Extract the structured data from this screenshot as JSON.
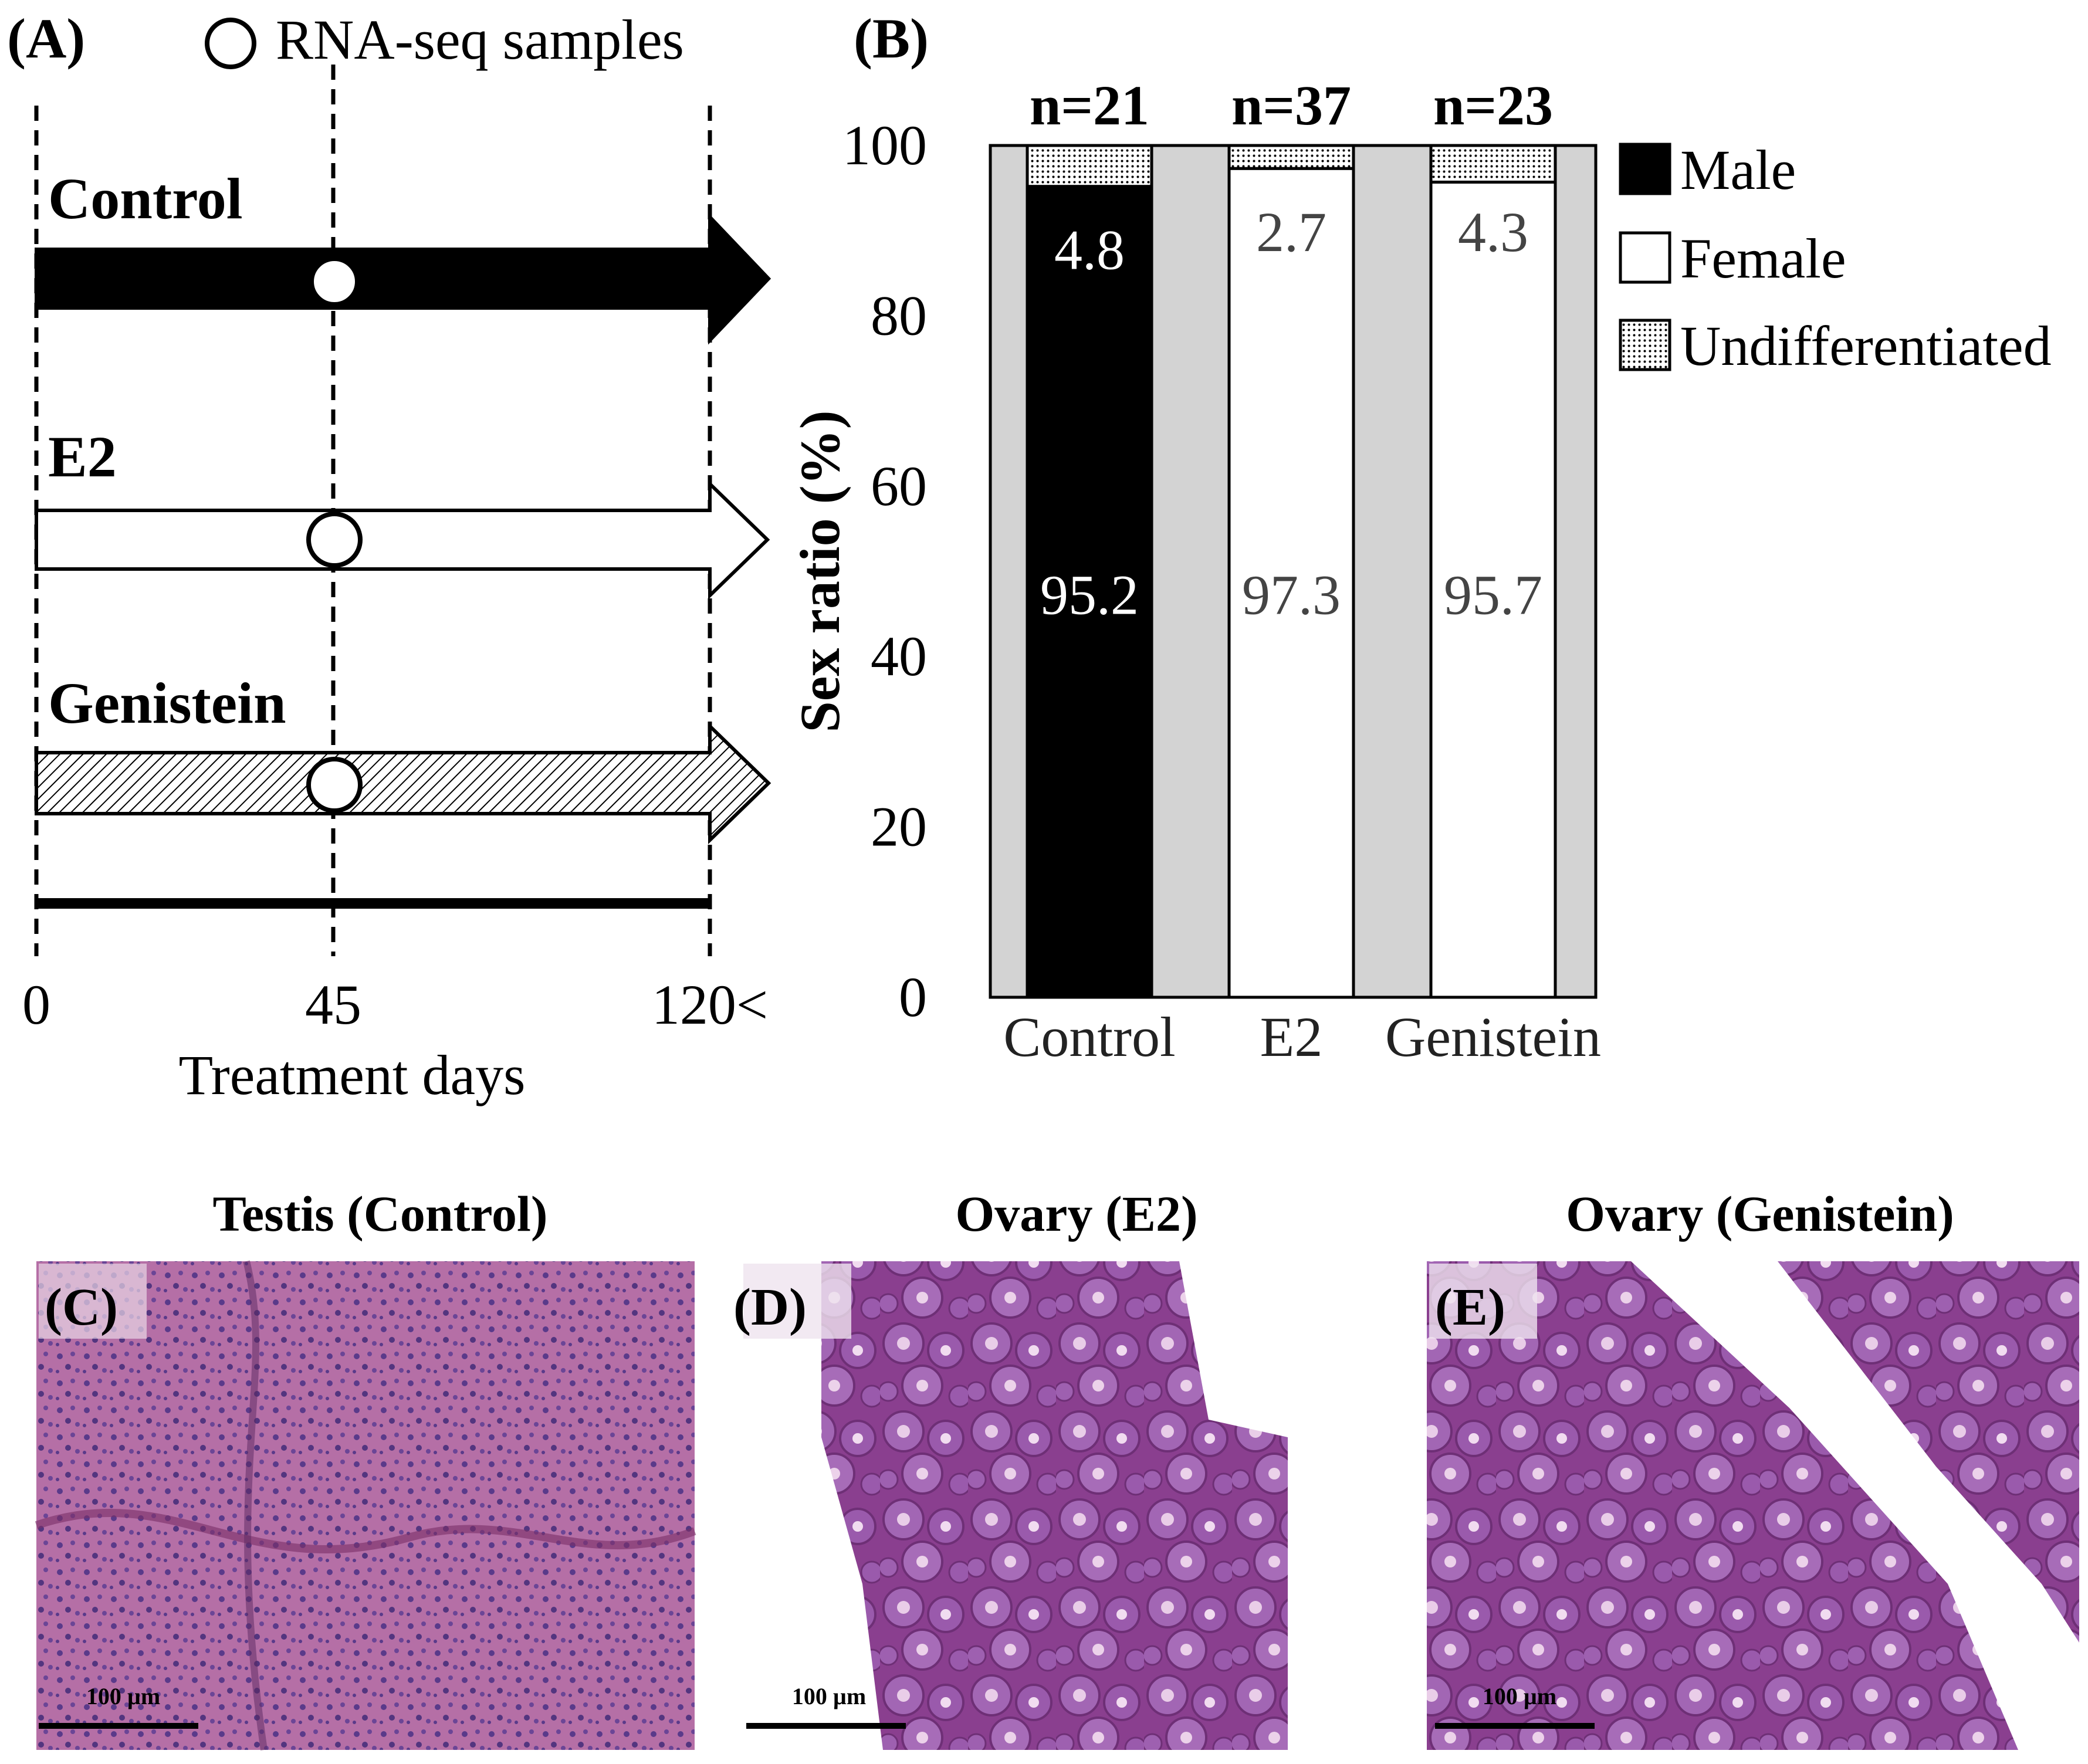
{
  "panelA": {
    "label": "(A)",
    "legend_text": "RNA-seq samples",
    "groups": [
      {
        "name": "Control",
        "style": "black"
      },
      {
        "name": "E2",
        "style": "white"
      },
      {
        "name": "Genistein",
        "style": "hatched"
      }
    ],
    "ticks": [
      "0",
      "45",
      "120<"
    ],
    "xlabel": "Treatment days",
    "sample_day": 45
  },
  "panelB": {
    "label": "(B)",
    "legend": [
      {
        "name": "Male",
        "color": "#000000"
      },
      {
        "name": "Female",
        "color": "#ffffff"
      },
      {
        "name": "Undifferentiated",
        "color": "dotted"
      }
    ]
  },
  "chart_data": {
    "type": "bar",
    "stacked": true,
    "categories": [
      "Control",
      "E2",
      "Genistein"
    ],
    "n_labels": [
      "n=21",
      "n=37",
      "n=23"
    ],
    "series": [
      {
        "name": "Male",
        "values": [
          95.2,
          0,
          0
        ]
      },
      {
        "name": "Female",
        "values": [
          0,
          97.3,
          95.7
        ]
      },
      {
        "name": "Undifferentiated",
        "values": [
          4.8,
          2.7,
          4.3
        ]
      }
    ],
    "value_labels": {
      "main": [
        "95.2",
        "97.3",
        "95.7"
      ],
      "minor": [
        "4.8",
        "2.7",
        "4.3"
      ]
    },
    "ylabel": "Sex ratio (%)",
    "ylim": [
      0,
      100
    ],
    "yticks": [
      "0",
      "20",
      "40",
      "60",
      "80",
      "100"
    ],
    "plot_background": "#d3d3d3"
  },
  "micrographs": [
    {
      "label": "(C)",
      "title": "Testis (Control)",
      "scale": "100 µm"
    },
    {
      "label": "(D)",
      "title": "Ovary (E2)",
      "scale": "100 µm"
    },
    {
      "label": "(E)",
      "title": "Ovary (Genistein)",
      "scale": "100 µm"
    }
  ]
}
